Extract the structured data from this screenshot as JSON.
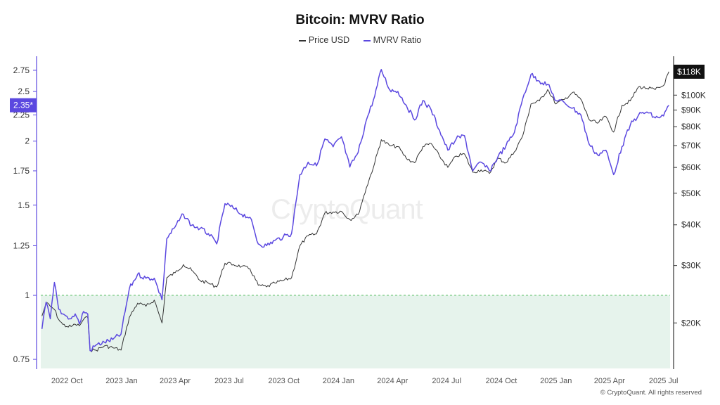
{
  "chart_data": {
    "type": "line",
    "title": "Bitcoin: MVRV Ratio",
    "series": [
      {
        "name": "Price USD",
        "color": "#333333",
        "axis": "right"
      },
      {
        "name": "MVRV Ratio",
        "color": "#5b48e0",
        "axis": "left"
      }
    ],
    "x_ticks": [
      "2022 Oct",
      "2023 Jan",
      "2023 Apr",
      "2023 Jul",
      "2023 Oct",
      "2024 Jan",
      "2024 Apr",
      "2024 Jul",
      "2024 Oct",
      "2025 Jan",
      "2025 Apr",
      "2025 Jul"
    ],
    "left_axis": {
      "ticks": [
        "0.75",
        "1",
        "1.25",
        "1.5",
        "1.75",
        "2",
        "2.25",
        "2.5",
        "2.75"
      ],
      "scale": "log"
    },
    "right_axis": {
      "ticks": [
        "$20K",
        "$30K",
        "$40K",
        "$50K",
        "$60K",
        "$70K",
        "$80K",
        "$90K",
        "$100K"
      ],
      "scale": "log"
    },
    "current_price_label": "$118K",
    "current_mvrv_label": "2.35*",
    "threshold": {
      "value": 1,
      "color": "#5ec26a",
      "fill": "#e6f3ec"
    },
    "mvrv": [
      [
        "2022-08-20",
        0.86
      ],
      [
        "2022-08-27",
        0.97
      ],
      [
        "2022-09-03",
        0.9
      ],
      [
        "2022-09-10",
        1.06
      ],
      [
        "2022-09-17",
        0.94
      ],
      [
        "2022-09-24",
        0.92
      ],
      [
        "2022-10-01",
        0.91
      ],
      [
        "2022-10-08",
        0.9
      ],
      [
        "2022-10-15",
        0.92
      ],
      [
        "2022-10-22",
        0.88
      ],
      [
        "2022-10-29",
        0.93
      ],
      [
        "2022-11-05",
        0.92
      ],
      [
        "2022-11-09",
        0.78
      ],
      [
        "2022-11-19",
        0.8
      ],
      [
        "2022-12-03",
        0.81
      ],
      [
        "2022-12-17",
        0.82
      ],
      [
        "2022-12-31",
        0.84
      ],
      [
        "2023-01-14",
        1.03
      ],
      [
        "2023-01-28",
        1.1
      ],
      [
        "2023-02-11",
        1.08
      ],
      [
        "2023-02-25",
        1.08
      ],
      [
        "2023-03-10",
        0.98
      ],
      [
        "2023-03-18",
        1.29
      ],
      [
        "2023-04-01",
        1.36
      ],
      [
        "2023-04-15",
        1.44
      ],
      [
        "2023-04-29",
        1.37
      ],
      [
        "2023-05-13",
        1.35
      ],
      [
        "2023-05-27",
        1.32
      ],
      [
        "2023-06-10",
        1.26
      ],
      [
        "2023-06-24",
        1.51
      ],
      [
        "2023-07-08",
        1.48
      ],
      [
        "2023-07-22",
        1.44
      ],
      [
        "2023-08-05",
        1.42
      ],
      [
        "2023-08-19",
        1.26
      ],
      [
        "2023-09-02",
        1.25
      ],
      [
        "2023-09-16",
        1.28
      ],
      [
        "2023-09-30",
        1.3
      ],
      [
        "2023-10-14",
        1.32
      ],
      [
        "2023-10-28",
        1.72
      ],
      [
        "2023-11-11",
        1.82
      ],
      [
        "2023-11-25",
        1.79
      ],
      [
        "2023-12-09",
        2.02
      ],
      [
        "2023-12-23",
        1.95
      ],
      [
        "2024-01-06",
        2.04
      ],
      [
        "2024-01-20",
        1.78
      ],
      [
        "2024-02-03",
        1.9
      ],
      [
        "2024-02-17",
        2.2
      ],
      [
        "2024-03-02",
        2.45
      ],
      [
        "2024-03-13",
        2.76
      ],
      [
        "2024-03-27",
        2.52
      ],
      [
        "2024-04-10",
        2.5
      ],
      [
        "2024-04-24",
        2.35
      ],
      [
        "2024-05-08",
        2.2
      ],
      [
        "2024-05-22",
        2.4
      ],
      [
        "2024-06-05",
        2.3
      ],
      [
        "2024-06-19",
        2.1
      ],
      [
        "2024-07-03",
        1.92
      ],
      [
        "2024-07-17",
        2.02
      ],
      [
        "2024-07-31",
        2.05
      ],
      [
        "2024-08-14",
        1.75
      ],
      [
        "2024-08-28",
        1.82
      ],
      [
        "2024-09-11",
        1.75
      ],
      [
        "2024-09-25",
        1.86
      ],
      [
        "2024-10-09",
        1.96
      ],
      [
        "2024-10-23",
        2.08
      ],
      [
        "2024-11-06",
        2.42
      ],
      [
        "2024-11-20",
        2.7
      ],
      [
        "2024-12-04",
        2.62
      ],
      [
        "2024-12-18",
        2.58
      ],
      [
        "2025-01-01",
        2.4
      ],
      [
        "2025-01-15",
        2.38
      ],
      [
        "2025-01-29",
        2.32
      ],
      [
        "2025-02-12",
        2.25
      ],
      [
        "2025-02-26",
        1.97
      ],
      [
        "2025-03-12",
        1.88
      ],
      [
        "2025-03-26",
        1.92
      ],
      [
        "2025-04-08",
        1.72
      ],
      [
        "2025-04-22",
        1.95
      ],
      [
        "2025-05-06",
        2.15
      ],
      [
        "2025-05-20",
        2.25
      ],
      [
        "2025-06-03",
        2.28
      ],
      [
        "2025-06-17",
        2.22
      ],
      [
        "2025-07-01",
        2.24
      ],
      [
        "2025-07-10",
        2.35
      ]
    ],
    "price": [
      [
        "2022-08-20",
        21000
      ],
      [
        "2022-08-27",
        23000
      ],
      [
        "2022-09-03",
        22500
      ],
      [
        "2022-09-10",
        22000
      ],
      [
        "2022-09-17",
        20500
      ],
      [
        "2022-09-24",
        19800
      ],
      [
        "2022-10-01",
        19500
      ],
      [
        "2022-10-08",
        19500
      ],
      [
        "2022-10-15",
        19800
      ],
      [
        "2022-10-22",
        19600
      ],
      [
        "2022-10-29",
        20500
      ],
      [
        "2022-11-05",
        20800
      ],
      [
        "2022-11-09",
        16500
      ],
      [
        "2022-11-19",
        16500
      ],
      [
        "2022-12-03",
        17000
      ],
      [
        "2022-12-17",
        16800
      ],
      [
        "2022-12-31",
        16500
      ],
      [
        "2023-01-14",
        20800
      ],
      [
        "2023-01-28",
        23000
      ],
      [
        "2023-02-11",
        22500
      ],
      [
        "2023-02-25",
        23500
      ],
      [
        "2023-03-10",
        20000
      ],
      [
        "2023-03-18",
        27500
      ],
      [
        "2023-04-01",
        28500
      ],
      [
        "2023-04-15",
        30200
      ],
      [
        "2023-04-29",
        29000
      ],
      [
        "2023-05-13",
        27000
      ],
      [
        "2023-05-27",
        26500
      ],
      [
        "2023-06-10",
        25800
      ],
      [
        "2023-06-24",
        30500
      ],
      [
        "2023-07-08",
        30200
      ],
      [
        "2023-07-22",
        29800
      ],
      [
        "2023-08-05",
        29300
      ],
      [
        "2023-08-19",
        26100
      ],
      [
        "2023-09-02",
        25800
      ],
      [
        "2023-09-16",
        26500
      ],
      [
        "2023-09-30",
        27000
      ],
      [
        "2023-10-14",
        27500
      ],
      [
        "2023-10-28",
        34500
      ],
      [
        "2023-11-11",
        37000
      ],
      [
        "2023-11-25",
        37500
      ],
      [
        "2023-12-09",
        43500
      ],
      [
        "2023-12-23",
        43800
      ],
      [
        "2024-01-06",
        44000
      ],
      [
        "2024-01-20",
        41500
      ],
      [
        "2024-02-03",
        43000
      ],
      [
        "2024-02-17",
        52000
      ],
      [
        "2024-03-02",
        62000
      ],
      [
        "2024-03-13",
        73000
      ],
      [
        "2024-03-27",
        70000
      ],
      [
        "2024-04-10",
        69500
      ],
      [
        "2024-04-24",
        64000
      ],
      [
        "2024-05-08",
        62000
      ],
      [
        "2024-05-22",
        69500
      ],
      [
        "2024-06-05",
        71000
      ],
      [
        "2024-06-19",
        65000
      ],
      [
        "2024-07-03",
        60000
      ],
      [
        "2024-07-17",
        65000
      ],
      [
        "2024-07-31",
        66000
      ],
      [
        "2024-08-14",
        58000
      ],
      [
        "2024-08-28",
        59000
      ],
      [
        "2024-09-11",
        57500
      ],
      [
        "2024-09-25",
        64000
      ],
      [
        "2024-10-09",
        62000
      ],
      [
        "2024-10-23",
        67000
      ],
      [
        "2024-11-06",
        75000
      ],
      [
        "2024-11-20",
        94000
      ],
      [
        "2024-12-04",
        96000
      ],
      [
        "2024-12-18",
        104000
      ],
      [
        "2025-01-01",
        94000
      ],
      [
        "2025-01-15",
        97000
      ],
      [
        "2025-01-29",
        102000
      ],
      [
        "2025-02-12",
        97000
      ],
      [
        "2025-02-26",
        84000
      ],
      [
        "2025-03-12",
        82000
      ],
      [
        "2025-03-26",
        86000
      ],
      [
        "2025-04-08",
        77000
      ],
      [
        "2025-04-22",
        93000
      ],
      [
        "2025-05-06",
        96000
      ],
      [
        "2025-05-20",
        106000
      ],
      [
        "2025-06-03",
        105000
      ],
      [
        "2025-06-17",
        104000
      ],
      [
        "2025-07-01",
        107000
      ],
      [
        "2025-07-10",
        118000
      ]
    ]
  },
  "legend": {
    "price_label": "Price USD",
    "mvrv_label": "MVRV Ratio"
  },
  "watermark": "CryptoQuant",
  "copyright": "© CryptoQuant. All rights reserved"
}
